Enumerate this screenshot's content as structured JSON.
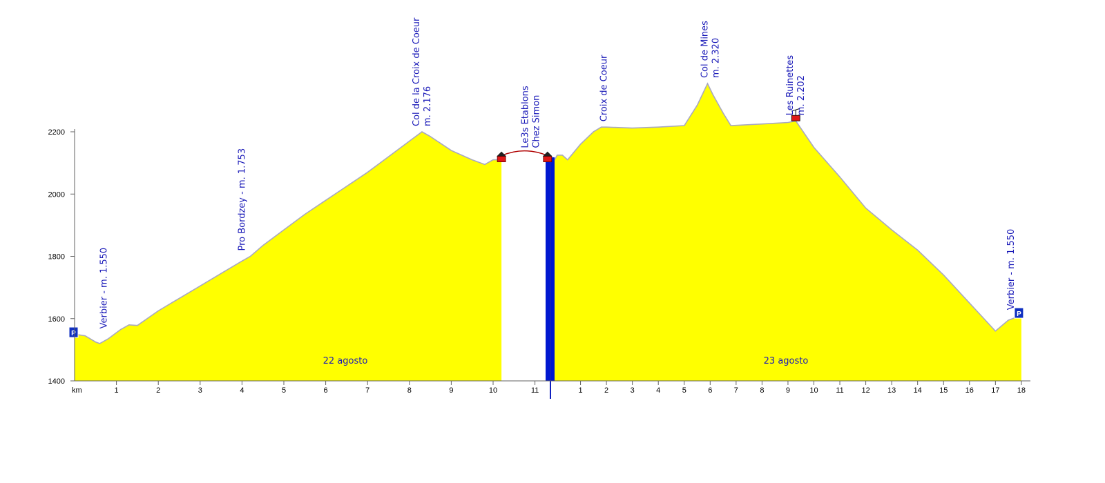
{
  "chart_data": {
    "type": "area",
    "title": "",
    "xlabel": "km",
    "ylabel": "",
    "ylim": [
      1400,
      2200
    ],
    "yticks": [
      1400,
      1600,
      1800,
      2000,
      2200
    ],
    "grid": false,
    "colors": {
      "fill": "#ffff00",
      "line": "#a8a8c0",
      "divider": "#0018d0",
      "label": "#1a1ab8",
      "axis": "#606060"
    },
    "series": [
      {
        "x": [
          0,
          0.25,
          0.5,
          0.6,
          0.8,
          1.1,
          1.3,
          1.5,
          2,
          2.5,
          3,
          3.5,
          4,
          4.2,
          4.5,
          5,
          5.5,
          6,
          6.5,
          7,
          7.5,
          8,
          8.3,
          8.5,
          9,
          9.5,
          9.8,
          10,
          10.2
        ],
        "y": [
          1550,
          1545,
          1525,
          1520,
          1535,
          1565,
          1580,
          1578,
          1625,
          1665,
          1705,
          1745,
          1785,
          1800,
          1835,
          1885,
          1935,
          1980,
          2025,
          2070,
          2120,
          2170,
          2200,
          2185,
          2140,
          2110,
          2095,
          2110,
          2110
        ]
      },
      {
        "x": [
          0,
          0.1,
          0.15,
          0.3,
          0.5,
          0.7,
          1,
          1.5,
          1.8,
          2,
          3,
          4,
          5,
          5.5,
          5.9,
          6.1,
          6.5,
          6.8,
          8,
          9,
          9.3,
          10,
          11,
          12,
          13,
          14,
          15,
          16,
          16.5,
          17,
          17.5,
          18
        ],
        "y": [
          2110,
          2125,
          2125,
          2125,
          2110,
          2130,
          2160,
          2200,
          2215,
          2215,
          2212,
          2215,
          2220,
          2285,
          2355,
          2320,
          2260,
          2220,
          2225,
          2230,
          2235,
          2150,
          2055,
          1955,
          1885,
          1820,
          1740,
          1650,
          1605,
          1560,
          1595,
          1610
        ]
      }
    ],
    "days": [
      {
        "label": "22 agosto",
        "x_ticks": [
          "km",
          "1",
          "2",
          "3",
          "4",
          "5",
          "6",
          "7",
          "8",
          "9",
          "10",
          "11"
        ]
      },
      {
        "label": "23 agosto",
        "x_ticks": [
          "1",
          "2",
          "3",
          "4",
          "5",
          "6",
          "7",
          "8",
          "9",
          "10",
          "11",
          "12",
          "13",
          "14",
          "15",
          "16",
          "17",
          "18"
        ]
      }
    ],
    "annotations": [
      {
        "day": 1,
        "x": 0.7,
        "y": 1550,
        "lines": [
          "Verbier - m. 1.550"
        ]
      },
      {
        "day": 1,
        "x": 4.0,
        "y": 1800,
        "lines": [
          "Pro Bordzey - m. 1.753"
        ]
      },
      {
        "day": 1,
        "x": 8.3,
        "y": 2200,
        "lines": [
          "Col de la Croix de Coeur",
          "m. 2.176"
        ]
      },
      {
        "day": 1,
        "x": 10.9,
        "y": 2130,
        "lines": [
          "Le3s Etablons",
          "Chez Simon"
        ]
      },
      {
        "day": 2,
        "x": 1.9,
        "y": 2215,
        "lines": [
          "Croix de Coeur"
        ]
      },
      {
        "day": 2,
        "x": 6.0,
        "y": 2355,
        "lines": [
          "Col de Mines",
          "m. 2.320"
        ]
      },
      {
        "day": 2,
        "x": 9.3,
        "y": 2235,
        "lines": [
          "Les Ruinettes",
          "m. 2.202"
        ]
      },
      {
        "day": 2,
        "x": 17.6,
        "y": 1610,
        "lines": [
          "Verbier - m. 1.550"
        ]
      }
    ],
    "parking_icon_text": "P"
  }
}
